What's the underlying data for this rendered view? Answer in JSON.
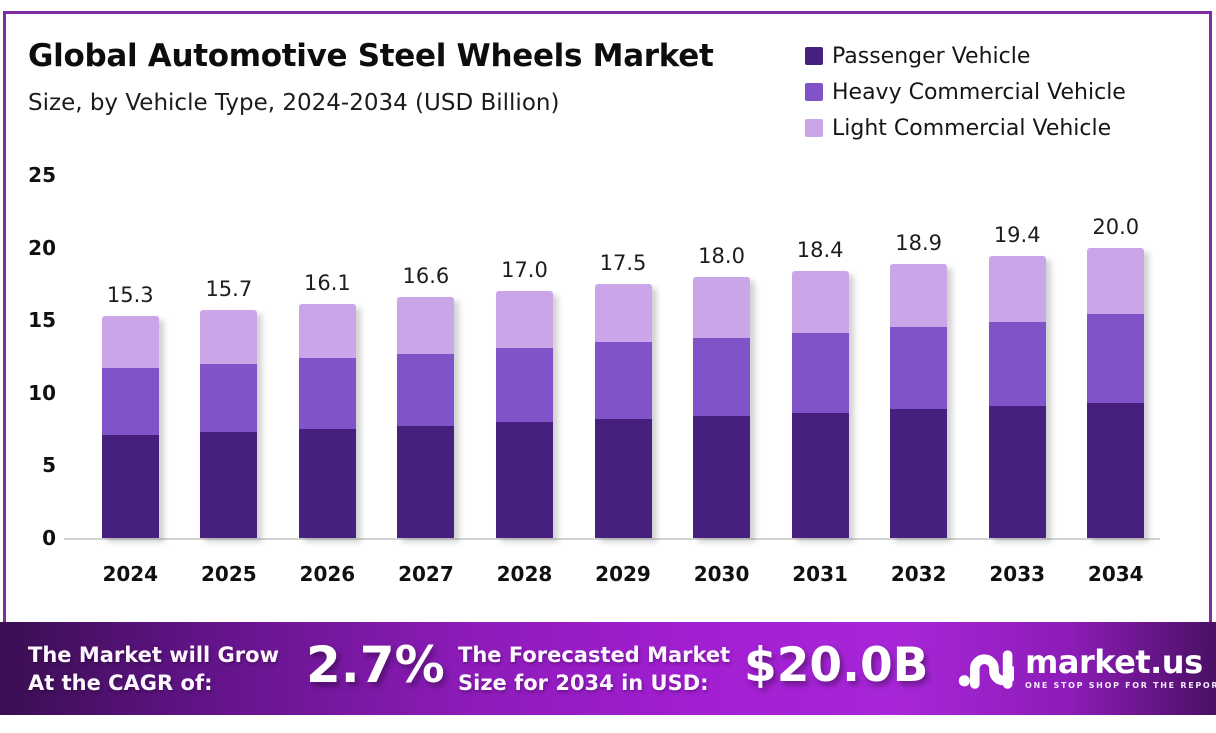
{
  "header": {
    "title": "Global Automotive Steel Wheels Market",
    "subtitle": "Size, by Vehicle Type, 2024-2034 (USD Billion)"
  },
  "legend": {
    "items": [
      {
        "label": "Passenger Vehicle",
        "color": "#45207e"
      },
      {
        "label": "Heavy Commercial Vehicle",
        "color": "#8153c8"
      },
      {
        "label": "Light Commercial Vehicle",
        "color": "#caa5e8"
      }
    ]
  },
  "chart_data": {
    "type": "bar",
    "stacked": true,
    "title": "Global Automotive Steel Wheels Market Size, by Vehicle Type, 2024-2034 (USD Billion)",
    "xlabel": "",
    "ylabel": "USD Billion",
    "categories": [
      "2024",
      "2025",
      "2026",
      "2027",
      "2028",
      "2029",
      "2030",
      "2031",
      "2032",
      "2033",
      "2034"
    ],
    "series": [
      {
        "name": "Passenger Vehicle",
        "color": "#45207e",
        "values": [
          7.1,
          7.3,
          7.5,
          7.7,
          8.0,
          8.2,
          8.4,
          8.6,
          8.9,
          9.1,
          9.3
        ]
      },
      {
        "name": "Heavy Commercial Vehicle",
        "color": "#8153c8",
        "values": [
          4.6,
          4.7,
          4.9,
          5.0,
          5.1,
          5.3,
          5.4,
          5.5,
          5.6,
          5.8,
          6.1
        ]
      },
      {
        "name": "Light Commercial Vehicle",
        "color": "#caa5e8",
        "values": [
          3.6,
          3.7,
          3.7,
          3.9,
          3.9,
          4.0,
          4.2,
          4.3,
          4.4,
          4.5,
          4.6
        ]
      }
    ],
    "totals": [
      15.3,
      15.7,
      16.1,
      16.6,
      17.0,
      17.5,
      18.0,
      18.4,
      18.9,
      19.4,
      20.0
    ],
    "ylim": [
      0,
      25
    ],
    "ytick_step": 5,
    "grid": false,
    "legend_position": "top-right"
  },
  "banner": {
    "cagr_label": "The Market will Grow\nAt the CAGR of:",
    "cagr_value": "2.7%",
    "forecast_label": "The Forecasted Market\nSize for 2034 in USD:",
    "forecast_value": "$20.0B",
    "brand_name": "market.us",
    "brand_tagline": "ONE STOP SHOP FOR THE REPORTS"
  },
  "colors": {
    "frame_border": "#7e2ba4",
    "axis_line": "#d2d2d2",
    "banner_gradient_start": "#3a0e51",
    "banner_gradient_mid": "#a726d8",
    "banner_gradient_end": "#4a1065",
    "text": "#0d0d0d",
    "banner_text": "#ffffff"
  }
}
